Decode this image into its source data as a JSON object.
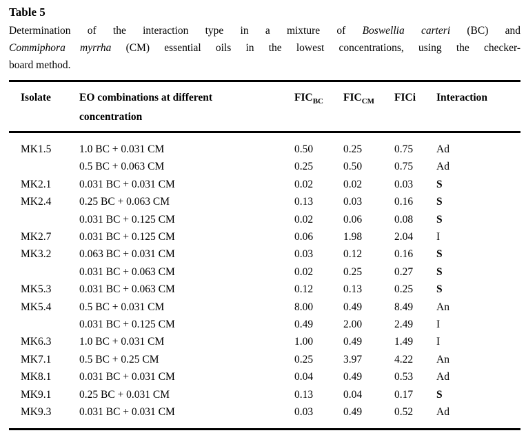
{
  "page": {
    "background_color": "#ffffff",
    "text_color": "#000000",
    "rule_color": "#000000"
  },
  "title": "Table 5",
  "caption": {
    "line1": {
      "seg1": "Determination of the interaction type in a mixture of ",
      "italic": "Boswellia carteri",
      "seg2": " (BC) and"
    },
    "line2": {
      "italic": "Commiphora myrrha",
      "seg1": " (CM) essential oils in the lowest concentrations, using the checker-"
    },
    "line3": {
      "seg1": "board method."
    }
  },
  "table": {
    "headers": {
      "isolate": "Isolate",
      "eo_line1": "EO combinations at different",
      "eo_line2": "concentration",
      "fic_bc_base": "FIC",
      "fic_bc_sub": "BC",
      "fic_cm_base": "FIC",
      "fic_cm_sub": "CM",
      "fici": "FICi",
      "interaction": "Interaction"
    },
    "rows": [
      {
        "isolate": "MK1.5",
        "combo": "1.0 BC + 0.031 CM",
        "fic_bc": "0.50",
        "fic_cm": "0.25",
        "fici": "0.75",
        "interaction": "Ad",
        "interaction_bold": false
      },
      {
        "isolate": "",
        "combo": "0.5 BC + 0.063 CM",
        "fic_bc": "0.25",
        "fic_cm": "0.50",
        "fici": "0.75",
        "interaction": "Ad",
        "interaction_bold": false
      },
      {
        "isolate": "MK2.1",
        "combo": "0.031 BC + 0.031 CM",
        "fic_bc": "0.02",
        "fic_cm": "0.02",
        "fici": "0.03",
        "interaction": "S",
        "interaction_bold": true
      },
      {
        "isolate": "MK2.4",
        "combo": "0.25 BC + 0.063 CM",
        "fic_bc": "0.13",
        "fic_cm": "0.03",
        "fici": "0.16",
        "interaction": "S",
        "interaction_bold": true
      },
      {
        "isolate": "",
        "combo": "0.031 BC + 0.125 CM",
        "fic_bc": "0.02",
        "fic_cm": "0.06",
        "fici": "0.08",
        "interaction": "S",
        "interaction_bold": true
      },
      {
        "isolate": "MK2.7",
        "combo": "0.031 BC + 0.125 CM",
        "fic_bc": "0.06",
        "fic_cm": "1.98",
        "fici": "2.04",
        "interaction": "I",
        "interaction_bold": false
      },
      {
        "isolate": "MK3.2",
        "combo": "0.063 BC + 0.031 CM",
        "fic_bc": "0.03",
        "fic_cm": "0.12",
        "fici": "0.16",
        "interaction": "S",
        "interaction_bold": true
      },
      {
        "isolate": "",
        "combo": "0.031 BC + 0.063 CM",
        "fic_bc": "0.02",
        "fic_cm": "0.25",
        "fici": "0.27",
        "interaction": "S",
        "interaction_bold": true
      },
      {
        "isolate": "MK5.3",
        "combo": "0.031 BC + 0.063 CM",
        "fic_bc": "0.12",
        "fic_cm": "0.13",
        "fici": "0.25",
        "interaction": "S",
        "interaction_bold": true
      },
      {
        "isolate": "MK5.4",
        "combo": "0.5 BC + 0.031 CM",
        "fic_bc": "8.00",
        "fic_cm": "0.49",
        "fici": "8.49",
        "interaction": "An",
        "interaction_bold": false
      },
      {
        "isolate": "",
        "combo": "0.031 BC + 0.125 CM",
        "fic_bc": "0.49",
        "fic_cm": "2.00",
        "fici": "2.49",
        "interaction": "I",
        "interaction_bold": false
      },
      {
        "isolate": "MK6.3",
        "combo": "1.0 BC + 0.031 CM",
        "fic_bc": "1.00",
        "fic_cm": "0.49",
        "fici": "1.49",
        "interaction": "I",
        "interaction_bold": false
      },
      {
        "isolate": "MK7.1",
        "combo": "0.5 BC + 0.25 CM",
        "fic_bc": "0.25",
        "fic_cm": "3.97",
        "fici": "4.22",
        "interaction": "An",
        "interaction_bold": false
      },
      {
        "isolate": "MK8.1",
        "combo": "0.031 BC + 0.031 CM",
        "fic_bc": "0.04",
        "fic_cm": "0.49",
        "fici": "0.53",
        "interaction": "Ad",
        "interaction_bold": false
      },
      {
        "isolate": "MK9.1",
        "combo": "0.25 BC + 0.031 CM",
        "fic_bc": "0.13",
        "fic_cm": "0.04",
        "fici": "0.17",
        "interaction": "S",
        "interaction_bold": true
      },
      {
        "isolate": "MK9.3",
        "combo": "0.031 BC + 0.031 CM",
        "fic_bc": "0.03",
        "fic_cm": "0.49",
        "fici": "0.52",
        "interaction": "Ad",
        "interaction_bold": false
      }
    ]
  }
}
